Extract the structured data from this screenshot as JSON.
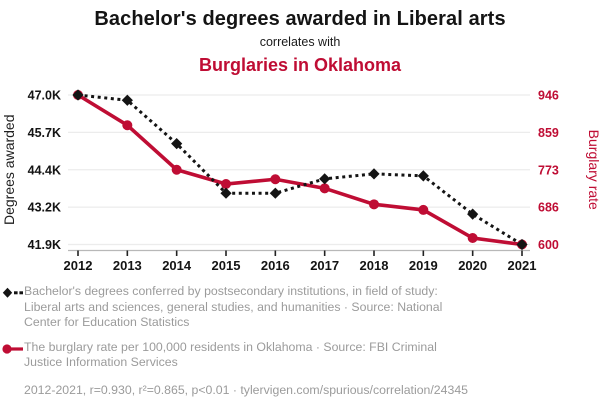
{
  "header": {
    "title": "Bachelor's degrees awarded in Liberal arts",
    "subtitle": "correlates with",
    "secondary_title": "Burglaries in Oklahoma"
  },
  "colors": {
    "red": "#bf0d34",
    "black": "#141414",
    "legend_gray": "#9b9b9b",
    "grid": "#ececec",
    "axis_line": "#b8b8b8"
  },
  "chart_data": {
    "type": "line",
    "title": "Bachelor's degrees awarded in Liberal arts correlates with Burglaries in Oklahoma",
    "x": [
      2012,
      2013,
      2014,
      2015,
      2016,
      2017,
      2018,
      2019,
      2020,
      2021
    ],
    "series": [
      {
        "name": "Bachelor's degrees awarded in Liberal arts",
        "axis": "left",
        "style": "dashed",
        "marker": "diamond",
        "color_key": "black",
        "values": [
          47000,
          46820,
          45340,
          43650,
          43650,
          44140,
          44310,
          44240,
          42935,
          41900
        ]
      },
      {
        "name": "Burglary rate per 100,000 residents in Oklahoma",
        "axis": "right",
        "style": "solid",
        "marker": "circle",
        "color_key": "red",
        "values": [
          946,
          876,
          773,
          740,
          751,
          730,
          693,
          680,
          615,
          600
        ]
      }
    ],
    "left_axis": {
      "label": "Degrees awarded",
      "ticks": [
        "47.0K",
        "45.7K",
        "44.4K",
        "43.2K",
        "41.9K"
      ],
      "min": 41900,
      "max": 47000
    },
    "right_axis": {
      "label": "Burglary rate",
      "ticks": [
        "946",
        "859",
        "773",
        "686",
        "600"
      ],
      "min": 600,
      "max": 946
    },
    "grid": true,
    "legend_position": "bottom"
  },
  "legend": [
    {
      "marker": "black-diamond-dashed",
      "label": "Bachelor's degrees conferred by postsecondary institutions, in field of study: Liberal arts and sciences, general studies, and humanities · Source: National Center for Education Statistics"
    },
    {
      "marker": "red-circle-solid",
      "label": "The burglary rate per 100,000 residents in Oklahoma · Source: FBI Criminal Justice Information Services"
    }
  ],
  "footer": "2012-2021, r=0.930, r²=0.865, p<0.01 · tylervigen.com/spurious/correlation/24345"
}
